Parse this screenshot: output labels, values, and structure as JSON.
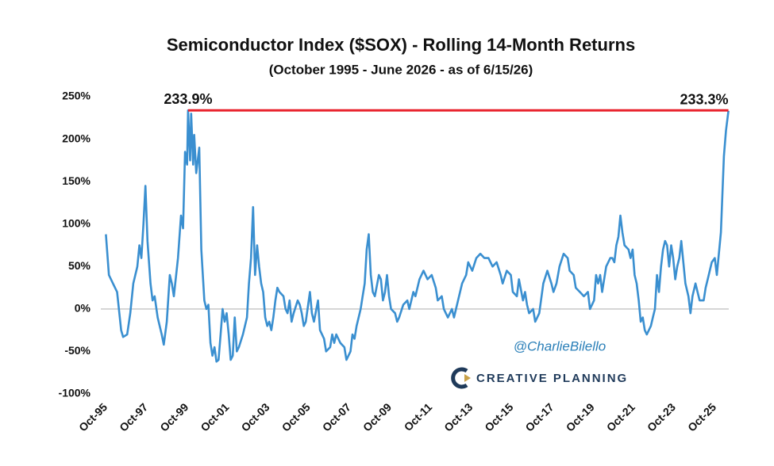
{
  "chart_data": {
    "type": "line",
    "title": "Semiconductor Index ($SOX) - Rolling 14-Month Returns",
    "subtitle": "(October 1995 - June 2026 - as of 6/15/26)",
    "color": "#3a8fd0",
    "x": [
      1995.75,
      1995.9,
      1996.1,
      1996.3,
      1996.5,
      1996.6,
      1996.8,
      1996.95,
      1997.1,
      1997.3,
      1997.4,
      1997.5,
      1997.6,
      1997.7,
      1997.8,
      1997.95,
      1998.05,
      1998.15,
      1998.3,
      1998.5,
      1998.6,
      1998.75,
      1998.9,
      1999.0,
      1999.1,
      1999.3,
      1999.45,
      1999.55,
      1999.65,
      1999.75,
      1999.8,
      1999.9,
      1999.95,
      2000.05,
      2000.1,
      2000.2,
      2000.35,
      2000.45,
      2000.6,
      2000.7,
      2000.8,
      2000.9,
      2001.0,
      2001.1,
      2001.2,
      2001.3,
      2001.4,
      2001.5,
      2001.6,
      2001.7,
      2001.8,
      2001.9,
      2002.0,
      2002.1,
      2002.2,
      2002.3,
      2002.5,
      2002.7,
      2002.8,
      2002.9,
      2003.0,
      2003.1,
      2003.2,
      2003.3,
      2003.4,
      2003.5,
      2003.6,
      2003.7,
      2003.8,
      2003.9,
      2004.0,
      2004.1,
      2004.2,
      2004.3,
      2004.5,
      2004.6,
      2004.7,
      2004.8,
      2004.9,
      2005.0,
      2005.2,
      2005.3,
      2005.4,
      2005.5,
      2005.6,
      2005.8,
      2005.9,
      2006.0,
      2006.2,
      2006.3,
      2006.5,
      2006.6,
      2006.8,
      2006.9,
      2007.0,
      2007.1,
      2007.3,
      2007.5,
      2007.6,
      2007.8,
      2007.9,
      2008.0,
      2008.1,
      2008.3,
      2008.4,
      2008.5,
      2008.6,
      2008.7,
      2008.8,
      2008.9,
      2009.0,
      2009.2,
      2009.3,
      2009.4,
      2009.5,
      2009.6,
      2009.7,
      2009.8,
      2010.0,
      2010.1,
      2010.2,
      2010.4,
      2010.6,
      2010.7,
      2010.9,
      2011.0,
      2011.2,
      2011.4,
      2011.6,
      2011.8,
      2012.0,
      2012.1,
      2012.3,
      2012.4,
      2012.6,
      2012.8,
      2012.9,
      2013.1,
      2013.3,
      2013.5,
      2013.6,
      2013.8,
      2014.0,
      2014.2,
      2014.4,
      2014.6,
      2014.8,
      2015.0,
      2015.2,
      2015.3,
      2015.5,
      2015.7,
      2015.8,
      2016.0,
      2016.1,
      2016.3,
      2016.4,
      2016.5,
      2016.6,
      2016.8,
      2016.9,
      2017.1,
      2017.3,
      2017.5,
      2017.7,
      2017.8,
      2017.95,
      2018.1,
      2018.3,
      2018.5,
      2018.6,
      2018.8,
      2018.9,
      2019.1,
      2019.3,
      2019.5,
      2019.6,
      2019.8,
      2019.9,
      2020.0,
      2020.1,
      2020.2,
      2020.4,
      2020.6,
      2020.7,
      2020.8,
      2020.9,
      2021.0,
      2021.1,
      2021.2,
      2021.3,
      2021.5,
      2021.6,
      2021.7,
      2021.8,
      2021.9,
      2022.0,
      2022.1,
      2022.2,
      2022.3,
      2022.4,
      2022.6,
      2022.7,
      2022.8,
      2022.9,
      2023.0,
      2023.1,
      2023.2,
      2023.3,
      2023.4,
      2023.5,
      2023.6,
      2023.7,
      2023.8,
      2023.9,
      2024.0,
      2024.1,
      2024.3,
      2024.45,
      2024.55,
      2024.65,
      2024.8,
      2024.9,
      2025.0,
      2025.2,
      2025.3,
      2025.4,
      2025.6,
      2025.75,
      2025.85,
      2026.05,
      2026.2,
      2026.3,
      2026.42
    ],
    "values": [
      88,
      40,
      30,
      20,
      -25,
      -33,
      -30,
      -5,
      30,
      50,
      75,
      60,
      100,
      145,
      80,
      30,
      10,
      15,
      -10,
      -30,
      -42,
      -15,
      40,
      30,
      15,
      60,
      110,
      95,
      185,
      170,
      233.9,
      175,
      230,
      170,
      205,
      160,
      190,
      70,
      10,
      0,
      5,
      -40,
      -55,
      -45,
      -62,
      -60,
      -30,
      0,
      -15,
      -5,
      -30,
      -60,
      -55,
      -10,
      -50,
      -45,
      -30,
      -10,
      30,
      60,
      120,
      40,
      75,
      50,
      30,
      20,
      -10,
      -20,
      -15,
      -25,
      -10,
      10,
      25,
      20,
      15,
      0,
      -5,
      10,
      -15,
      -5,
      10,
      5,
      -5,
      -20,
      -15,
      20,
      -5,
      -15,
      10,
      -25,
      -35,
      -50,
      -45,
      -30,
      -40,
      -30,
      -40,
      -45,
      -60,
      -50,
      -30,
      -35,
      -20,
      0,
      15,
      30,
      70,
      88,
      40,
      20,
      15,
      40,
      35,
      10,
      20,
      40,
      15,
      0,
      -5,
      -15,
      -10,
      5,
      10,
      0,
      20,
      15,
      35,
      45,
      35,
      40,
      25,
      10,
      15,
      0,
      -10,
      0,
      -10,
      10,
      30,
      40,
      55,
      45,
      60,
      65,
      60,
      60,
      50,
      55,
      40,
      30,
      45,
      40,
      20,
      15,
      35,
      10,
      20,
      5,
      -5,
      0,
      -15,
      -5,
      30,
      45,
      30,
      20,
      30,
      50,
      65,
      60,
      45,
      40,
      25,
      20,
      15,
      20,
      0,
      10,
      40,
      30,
      40,
      20,
      50,
      60,
      60,
      55,
      75,
      85,
      110,
      90,
      75,
      70,
      60,
      70,
      40,
      30,
      10,
      -15,
      -10,
      -25,
      -30,
      -20,
      -10,
      0,
      40,
      20,
      50,
      70,
      80,
      75,
      50,
      75,
      60,
      35,
      50,
      60,
      80,
      30,
      15,
      -5,
      15,
      30,
      20,
      10,
      10,
      25,
      35,
      55,
      60,
      40,
      90,
      180,
      210,
      233.3
    ],
    "xlim": [
      1995.5,
      2026.75
    ],
    "ylim": [
      -100,
      250
    ],
    "xticks": [
      {
        "value": 1995.75,
        "label": "Oct-95"
      },
      {
        "value": 1997.75,
        "label": "Oct-97"
      },
      {
        "value": 1999.75,
        "label": "Oct-99"
      },
      {
        "value": 2001.75,
        "label": "Oct-01"
      },
      {
        "value": 2003.75,
        "label": "Oct-03"
      },
      {
        "value": 2005.75,
        "label": "Oct-05"
      },
      {
        "value": 2007.75,
        "label": "Oct-07"
      },
      {
        "value": 2009.75,
        "label": "Oct-09"
      },
      {
        "value": 2011.75,
        "label": "Oct-11"
      },
      {
        "value": 2013.75,
        "label": "Oct-13"
      },
      {
        "value": 2015.75,
        "label": "Oct-15"
      },
      {
        "value": 2017.75,
        "label": "Oct-17"
      },
      {
        "value": 2019.75,
        "label": "Oct-19"
      },
      {
        "value": 2021.75,
        "label": "Oct-21"
      },
      {
        "value": 2023.75,
        "label": "Oct-23"
      },
      {
        "value": 2025.75,
        "label": "Oct-25"
      }
    ],
    "yticks": [
      {
        "value": 250,
        "label": "250%"
      },
      {
        "value": 200,
        "label": "200%"
      },
      {
        "value": 150,
        "label": "150%"
      },
      {
        "value": 100,
        "label": "100%"
      },
      {
        "value": 50,
        "label": "50%"
      },
      {
        "value": 0,
        "label": "0%"
      },
      {
        "value": -50,
        "label": "-50%"
      },
      {
        "value": -100,
        "label": "-100%"
      }
    ],
    "zero_line": true,
    "annotations": [
      {
        "label": "233.9%",
        "x": 1999.8,
        "y": 233.9
      },
      {
        "label": "233.3%",
        "x": 2026.42,
        "y": 233.3
      }
    ],
    "peak_line_color": "#e8202a",
    "watermark": "@CharlieBilello",
    "logo_text": "CREATIVE PLANNING"
  }
}
